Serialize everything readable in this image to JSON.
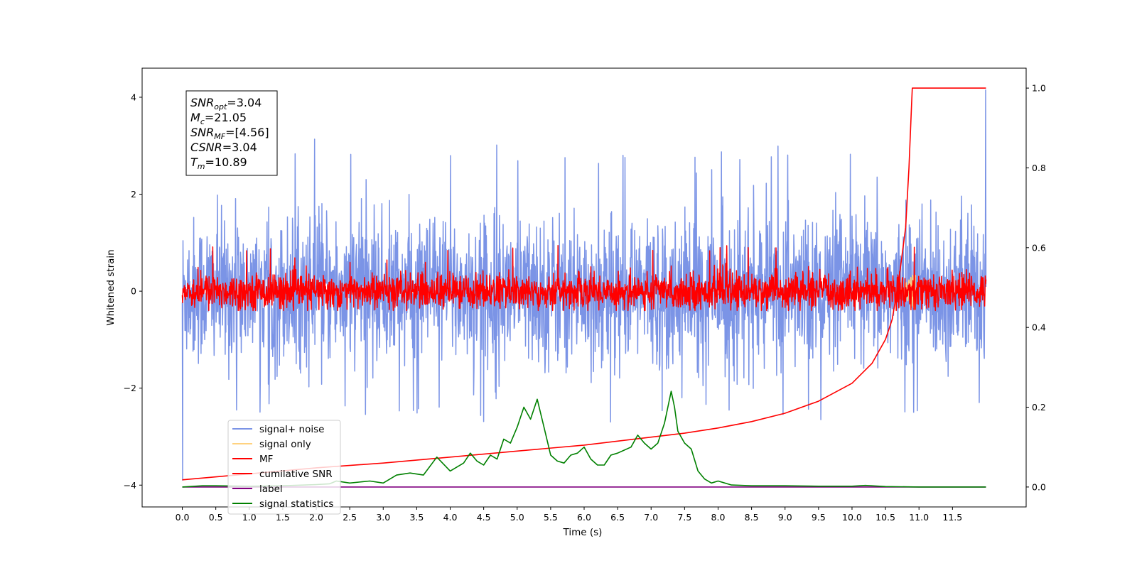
{
  "chart_data": {
    "type": "line",
    "xlabel": "Time (s)",
    "ylabel": "Whitened strain",
    "xlim": [
      -0.6,
      12.6
    ],
    "ylim": [
      -4.45,
      4.6
    ],
    "y2lim": [
      -0.05,
      1.05
    ],
    "x_ticks": [
      "0.0",
      "0.5",
      "1.0",
      "1.5",
      "2.0",
      "2.5",
      "3.0",
      "3.5",
      "4.0",
      "4.5",
      "5.0",
      "5.5",
      "6.0",
      "6.5",
      "7.0",
      "7.5",
      "8.0",
      "8.5",
      "9.0",
      "9.5",
      "10.0",
      "10.5",
      "11.0",
      "11.5"
    ],
    "y_ticks": [
      "−4",
      "−2",
      "0",
      "2",
      "4"
    ],
    "y2_ticks": [
      "0.0",
      "0.2",
      "0.4",
      "0.6",
      "0.8",
      "1.0"
    ],
    "annotation": [
      {
        "base": "SNR",
        "sub": "opt",
        "value": "=3.04"
      },
      {
        "base": "M",
        "sub": "c",
        "value": "=21.05"
      },
      {
        "base": "SNR",
        "sub": "MF",
        "value": "=[4.56]"
      },
      {
        "base": "CSNR",
        "sub": "",
        "value": "=3.04"
      },
      {
        "base": "T",
        "sub": "m",
        "value": "=10.89"
      }
    ],
    "series": [
      {
        "name": "signal+ noise",
        "color": "#7b94e6",
        "axis": "left",
        "style": "noise",
        "x_range": [
          0,
          12
        ],
        "amplitude_range": [
          -2.7,
          3.15
        ],
        "typical_std": 0.75
      },
      {
        "name": "signal only",
        "color": "#ffd27f",
        "axis": "left",
        "style": "chirp",
        "x_range": [
          10.7,
          10.95
        ],
        "amplitude_range": [
          -0.4,
          0.4
        ]
      },
      {
        "name": "MF",
        "color": "#ff0000",
        "axis": "left",
        "style": "noise",
        "x_range": [
          0,
          12
        ],
        "amplitude_range": [
          -0.4,
          0.95
        ],
        "typical_std": 0.18
      },
      {
        "name": "cumilative SNR",
        "color": "#ff0000",
        "axis": "right",
        "x": [
          0,
          1,
          2,
          3,
          4,
          5,
          6,
          7,
          7.5,
          8,
          8.5,
          9,
          9.5,
          10,
          10.3,
          10.5,
          10.6,
          10.7,
          10.8,
          10.85,
          10.89,
          10.9,
          11.0,
          11.5,
          12.0
        ],
        "y": [
          0.018,
          0.033,
          0.048,
          0.06,
          0.075,
          0.09,
          0.105,
          0.125,
          0.135,
          0.148,
          0.164,
          0.185,
          0.215,
          0.26,
          0.31,
          0.37,
          0.42,
          0.52,
          0.65,
          0.8,
          0.96,
          1.0,
          1.0,
          1.0,
          1.0
        ]
      },
      {
        "name": "label",
        "color": "#800080",
        "axis": "right",
        "x": [
          0,
          12
        ],
        "y": [
          0.0,
          0.0
        ]
      },
      {
        "name": "signal statistics",
        "color": "#008000",
        "axis": "right",
        "x": [
          0,
          0.3,
          0.5,
          1,
          1.5,
          2,
          2.2,
          2.3,
          2.5,
          2.8,
          3,
          3.2,
          3.4,
          3.6,
          3.8,
          4,
          4.2,
          4.3,
          4.4,
          4.5,
          4.6,
          4.7,
          4.8,
          4.9,
          5,
          5.1,
          5.2,
          5.3,
          5.4,
          5.5,
          5.6,
          5.7,
          5.8,
          5.9,
          6,
          6.1,
          6.2,
          6.3,
          6.4,
          6.5,
          6.7,
          6.8,
          6.9,
          7,
          7.1,
          7.2,
          7.3,
          7.35,
          7.4,
          7.5,
          7.6,
          7.7,
          7.8,
          7.9,
          8,
          8.2,
          8.5,
          9,
          9.5,
          10,
          10.2,
          10.5,
          11,
          12
        ],
        "y": [
          0.0,
          0.003,
          0.003,
          0.002,
          0.003,
          0.006,
          0.008,
          0.015,
          0.01,
          0.015,
          0.01,
          0.03,
          0.035,
          0.03,
          0.075,
          0.04,
          0.06,
          0.085,
          0.065,
          0.055,
          0.08,
          0.07,
          0.12,
          0.11,
          0.15,
          0.2,
          0.17,
          0.22,
          0.15,
          0.08,
          0.065,
          0.06,
          0.08,
          0.085,
          0.1,
          0.07,
          0.055,
          0.055,
          0.08,
          0.085,
          0.1,
          0.13,
          0.11,
          0.095,
          0.11,
          0.16,
          0.24,
          0.2,
          0.14,
          0.11,
          0.095,
          0.04,
          0.02,
          0.01,
          0.015,
          0.005,
          0.003,
          0.003,
          0.002,
          0.002,
          0.004,
          0.001,
          0.0,
          0.0
        ]
      }
    ],
    "legend_position": "lower-left",
    "grid": false
  }
}
